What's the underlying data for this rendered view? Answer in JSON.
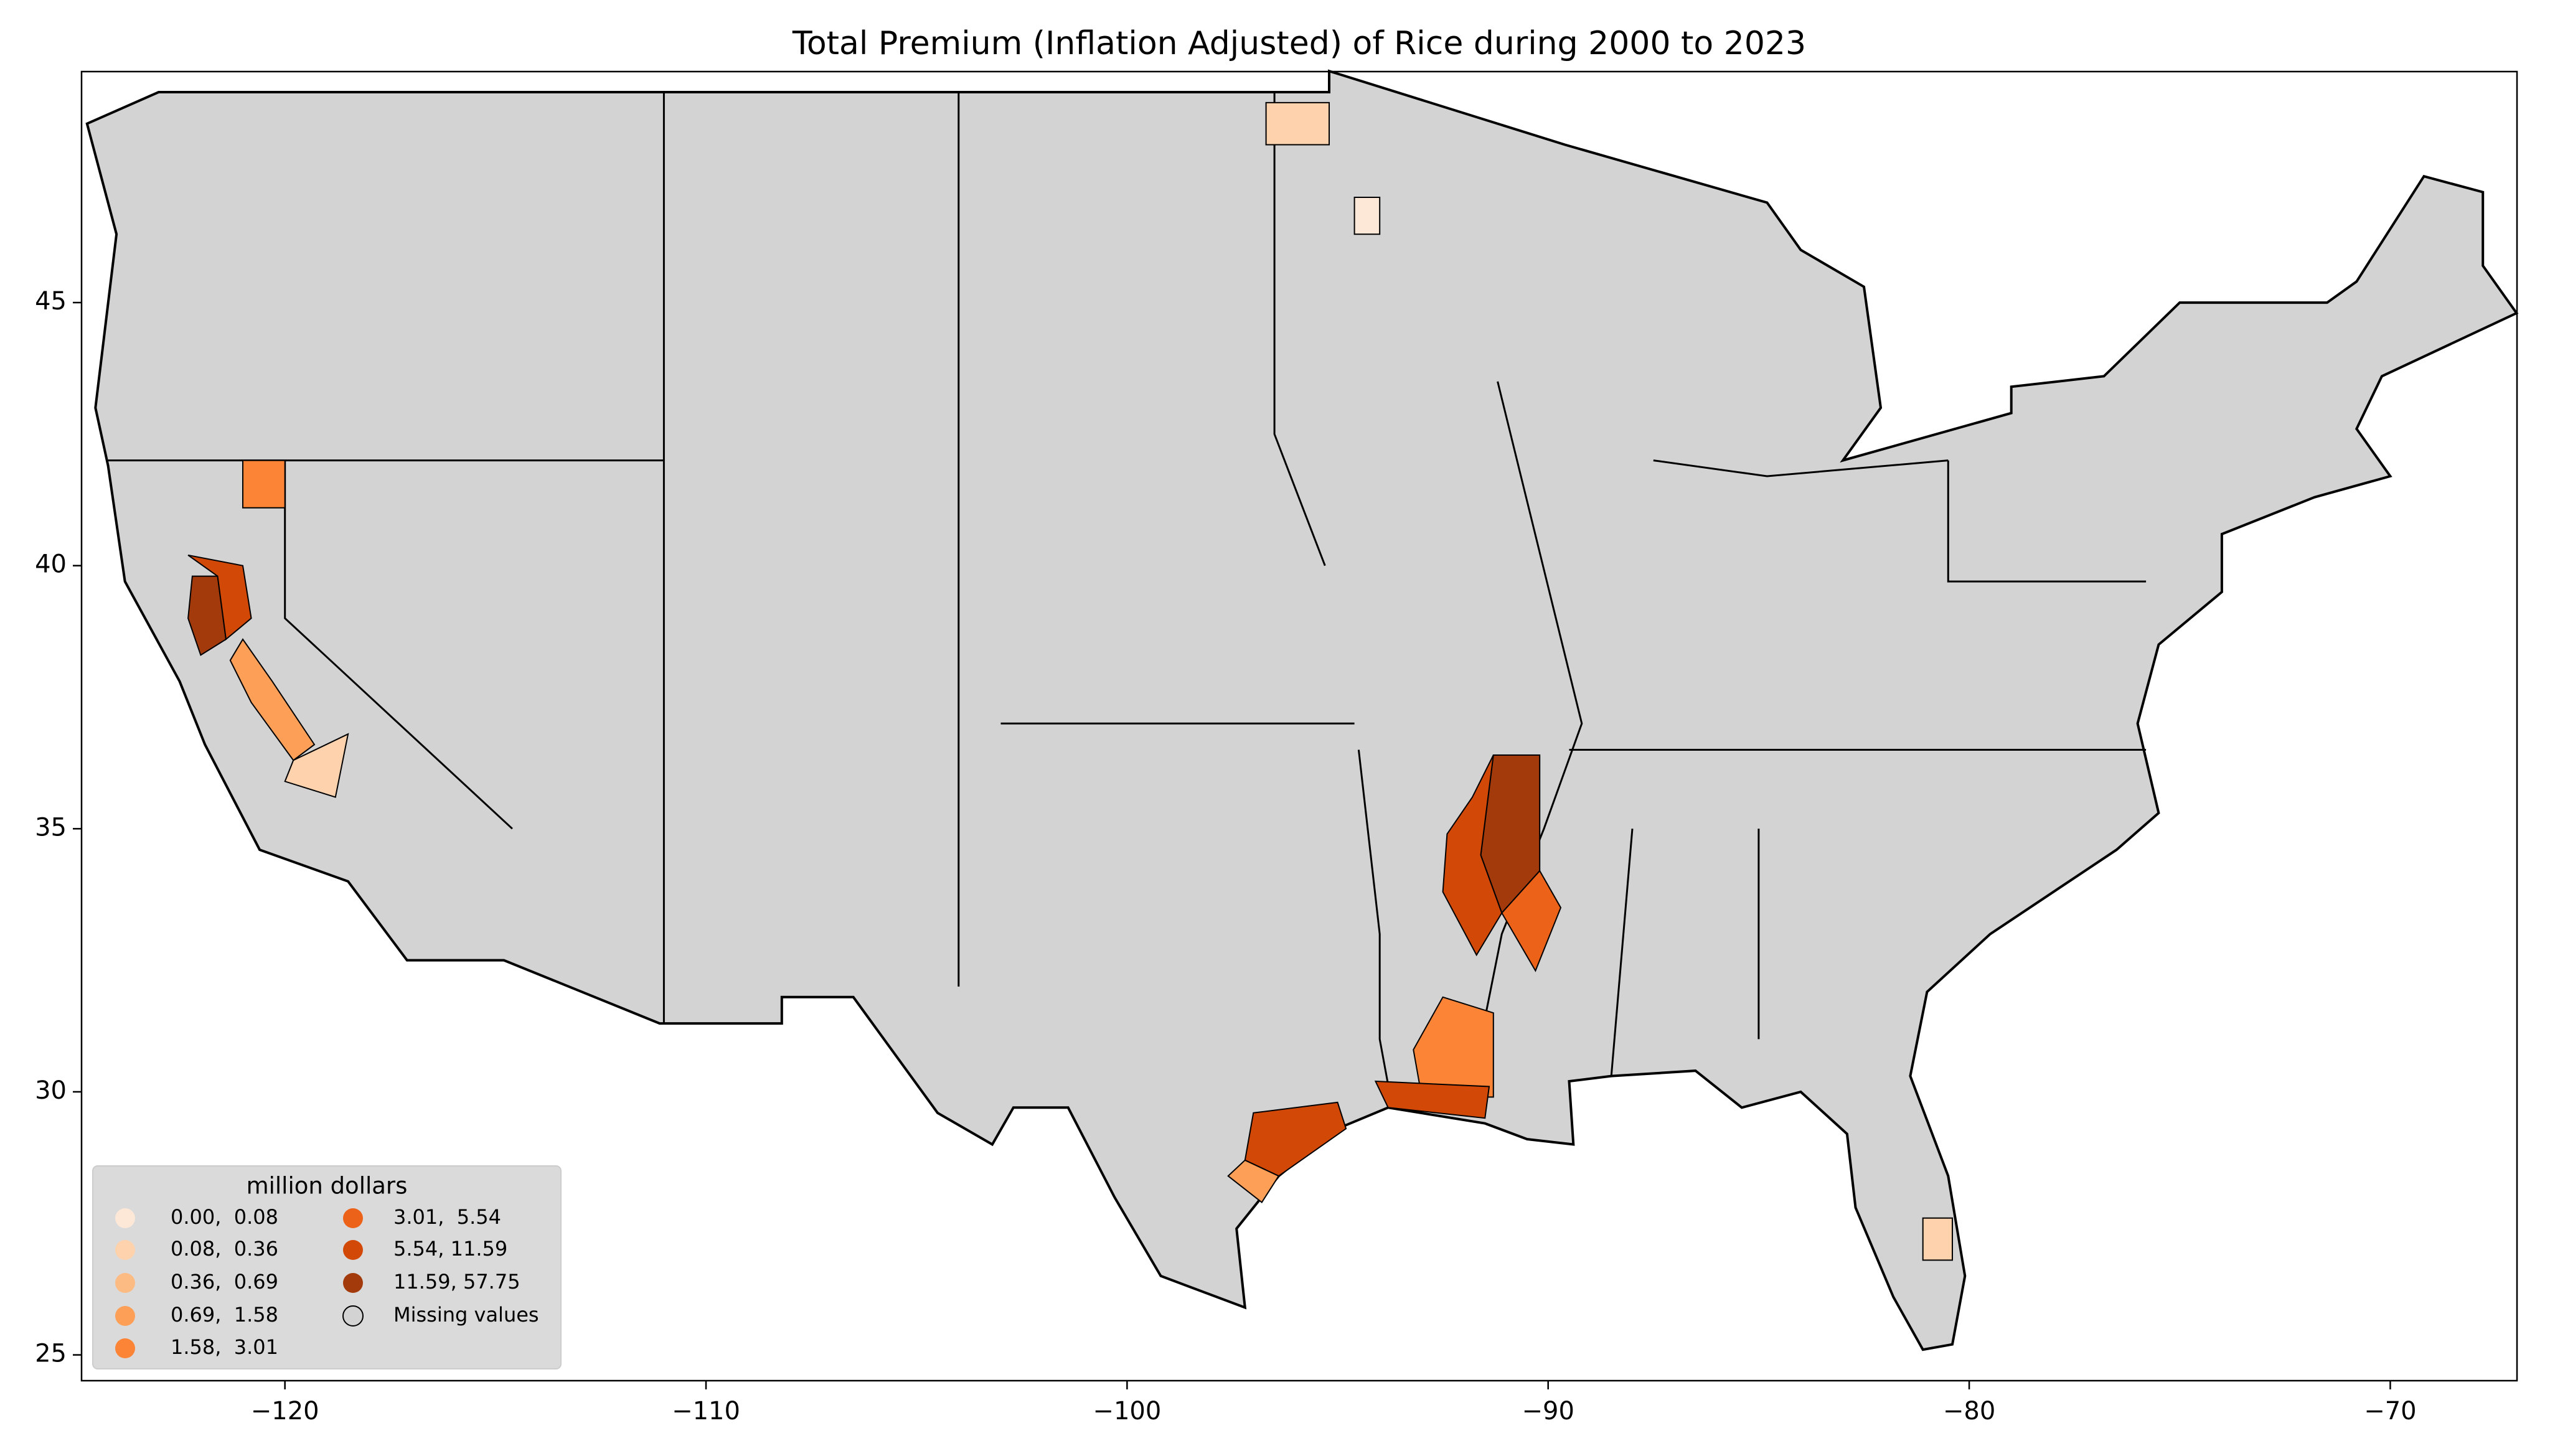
{
  "chart_data": {
    "type": "choropleth",
    "title": "Total  Premium  (Inflation Adjusted) of Rice during 2000 to 2023",
    "xlim": [
      -124.83,
      -66.99
    ],
    "ylim": [
      24.51,
      49.39
    ],
    "xticks": [
      {
        "value": -120,
        "label": "−120"
      },
      {
        "value": -110,
        "label": "−110"
      },
      {
        "value": -100,
        "label": "−100"
      },
      {
        "value": -90,
        "label": "−90"
      },
      {
        "value": -80,
        "label": "−80"
      },
      {
        "value": -70,
        "label": "−70"
      }
    ],
    "yticks": [
      25,
      30,
      35,
      40,
      45
    ],
    "legend": {
      "title": "million dollars",
      "position": "lower left",
      "items": [
        {
          "label": "0.00,  0.08",
          "color": "#fde8d7"
        },
        {
          "label": "0.08,  0.36",
          "color": "#fdd2ac"
        },
        {
          "label": "0.36,  0.69",
          "color": "#fdbb84"
        },
        {
          "label": "0.69,  1.58",
          "color": "#fd9f57"
        },
        {
          "label": "1.58,  3.01",
          "color": "#fb8437"
        },
        {
          "label": "3.01,  5.54",
          "color": "#ec6218"
        },
        {
          "label": "5.54, 11.59",
          "color": "#d24806"
        },
        {
          "label": "11.59, 57.75",
          "color": "#a33a0b"
        },
        {
          "label": "Missing values",
          "color": "#d3d3d3"
        }
      ]
    }
  }
}
